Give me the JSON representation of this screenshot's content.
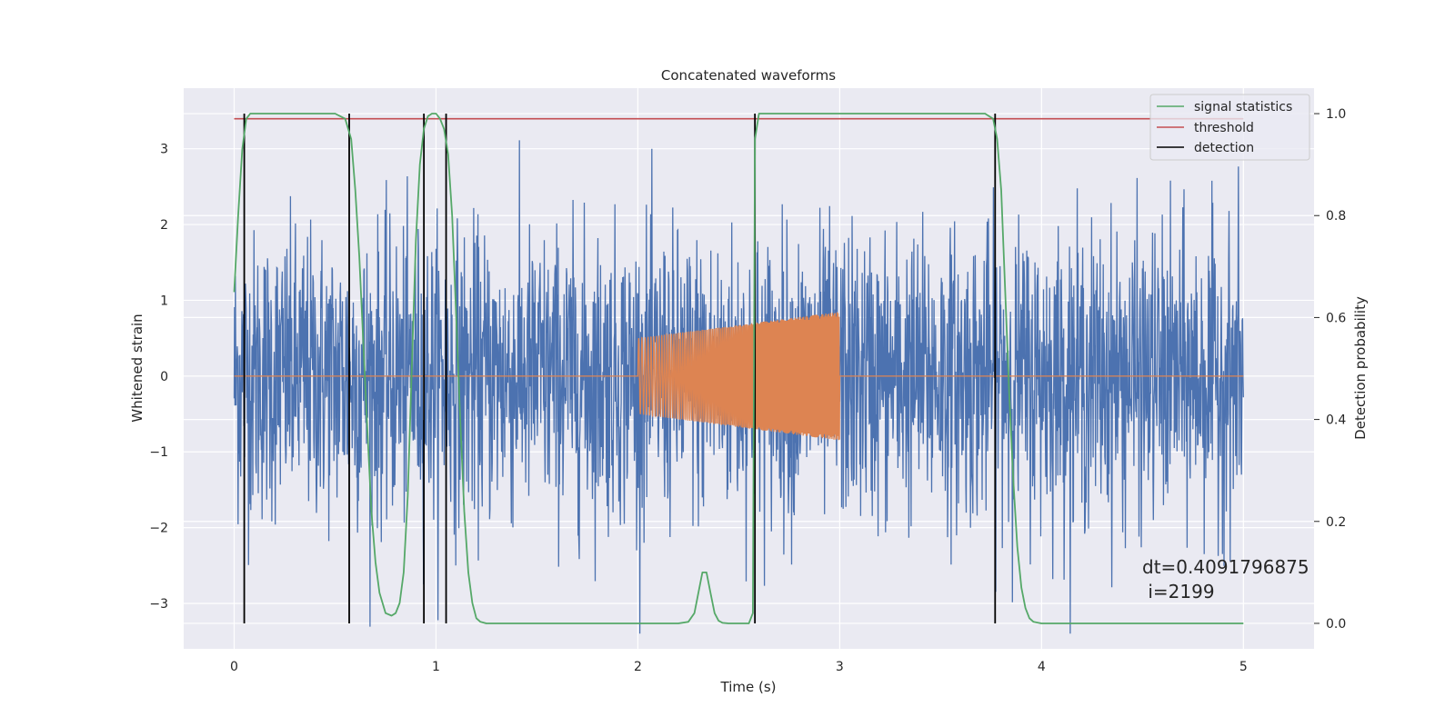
{
  "chart_data": {
    "type": "line",
    "title": "Concatenated waveforms",
    "xlabel": "Time (s)",
    "ylabel": "Whitened strain",
    "y2label": "Detection probability",
    "xlim": [
      -0.25,
      5.35
    ],
    "ylim": [
      -3.6,
      3.8
    ],
    "y2lim": [
      -0.05,
      1.05
    ],
    "xticks": [
      0,
      1,
      2,
      3,
      4,
      5
    ],
    "yticks": [
      -3,
      -2,
      -1,
      0,
      1,
      2,
      3
    ],
    "y2ticks": [
      0.0,
      0.2,
      0.4,
      0.6,
      0.8,
      1.0
    ],
    "xtick_labels": [
      "0",
      "1",
      "2",
      "3",
      "4",
      "5"
    ],
    "ytick_labels": [
      "−3",
      "−2",
      "−1",
      "0",
      "1",
      "2",
      "3"
    ],
    "y2tick_labels": [
      "0.0",
      "0.2",
      "0.4",
      "0.6",
      "0.8",
      "1.0"
    ],
    "grid": true,
    "legend_position": "top-right",
    "colors": {
      "background": "#eaeaf2",
      "grid": "#ffffff",
      "strain": "#4c72b0",
      "injection": "#dd8452",
      "statistic": "#55a868",
      "threshold": "#c44e52",
      "detection": "#000000"
    },
    "series": [
      {
        "name": "strain",
        "axis": "left",
        "style": "noise",
        "x_range": [
          0,
          5
        ],
        "amplitude_std": 0.95,
        "max_abs": 3.4
      },
      {
        "name": "injected signal",
        "axis": "left",
        "style": "chirp",
        "x_range": [
          0,
          5
        ],
        "active_range": [
          2.0,
          3.0
        ],
        "amplitude_start": 0.5,
        "amplitude_end": 0.85
      },
      {
        "name": "signal statistics",
        "axis": "right",
        "x": [
          0,
          0.02,
          0.04,
          0.06,
          0.08,
          0.1,
          0.15,
          0.3,
          0.5,
          0.55,
          0.58,
          0.6,
          0.62,
          0.64,
          0.66,
          0.68,
          0.7,
          0.72,
          0.75,
          0.78,
          0.8,
          0.82,
          0.84,
          0.86,
          0.88,
          0.9,
          0.92,
          0.94,
          0.96,
          0.98,
          1.0,
          1.02,
          1.04,
          1.06,
          1.08,
          1.1,
          1.12,
          1.14,
          1.16,
          1.18,
          1.2,
          1.22,
          1.25,
          1.3,
          1.5,
          2.0,
          2.2,
          2.25,
          2.28,
          2.3,
          2.32,
          2.34,
          2.36,
          2.38,
          2.4,
          2.42,
          2.45,
          2.5,
          2.55,
          2.57,
          2.58,
          2.6,
          2.62,
          2.7,
          3.0,
          3.5,
          3.72,
          3.76,
          3.78,
          3.8,
          3.82,
          3.84,
          3.86,
          3.88,
          3.9,
          3.92,
          3.94,
          3.96,
          4.0,
          4.5,
          5.0
        ],
        "values": [
          0.65,
          0.8,
          0.93,
          0.99,
          1.0,
          1.0,
          1.0,
          1.0,
          1.0,
          0.99,
          0.95,
          0.85,
          0.72,
          0.55,
          0.38,
          0.22,
          0.12,
          0.06,
          0.02,
          0.015,
          0.02,
          0.04,
          0.1,
          0.25,
          0.5,
          0.75,
          0.9,
          0.97,
          0.995,
          1.0,
          1.0,
          0.99,
          0.97,
          0.92,
          0.8,
          0.6,
          0.4,
          0.22,
          0.1,
          0.04,
          0.01,
          0.003,
          0.0,
          0.0,
          0.0,
          0.0,
          0.0,
          0.003,
          0.02,
          0.06,
          0.1,
          0.1,
          0.06,
          0.02,
          0.005,
          0.001,
          0.0,
          0.0,
          0.0,
          0.02,
          0.95,
          1.0,
          1.0,
          1.0,
          1.0,
          1.0,
          1.0,
          0.99,
          0.95,
          0.85,
          0.65,
          0.45,
          0.28,
          0.15,
          0.07,
          0.03,
          0.01,
          0.003,
          0.0,
          0.0,
          0.0
        ]
      },
      {
        "name": "threshold",
        "axis": "right",
        "x": [
          0,
          5
        ],
        "values": [
          0.99,
          0.99
        ]
      },
      {
        "name": "detection",
        "axis": "right",
        "type": "vlines",
        "x": [
          0.05,
          0.57,
          0.94,
          1.05,
          2.58,
          3.77
        ],
        "ymin": 0.0,
        "ymax": 1.0
      }
    ],
    "legend": [
      "signal statistics",
      "threshold",
      "detection"
    ],
    "annotation": {
      "line1": "dt=0.4091796875",
      "line2": " i=2199"
    }
  }
}
